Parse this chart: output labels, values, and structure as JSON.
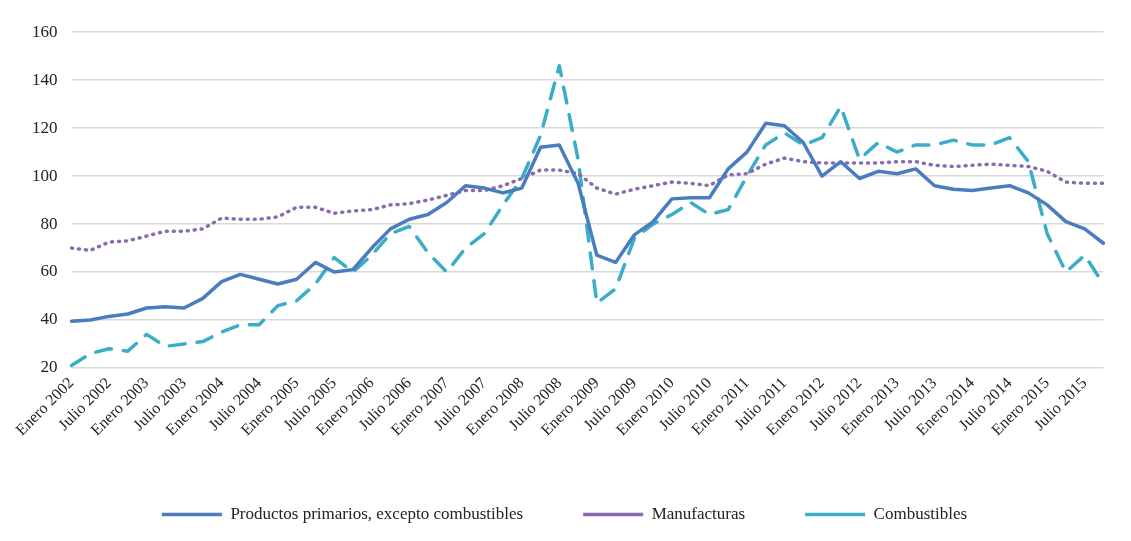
{
  "chart_data": {
    "type": "line",
    "categories": [
      "Enero 2002",
      null,
      "Julio 2002",
      null,
      "Enero 2003",
      null,
      "Julio 2003",
      null,
      "Enero 2004",
      null,
      "Julio 2004",
      null,
      "Enero 2005",
      null,
      "Julio 2005",
      null,
      "Enero 2006",
      null,
      "Julio 2006",
      null,
      "Enero 2007",
      null,
      "Julio 2007",
      null,
      "Enero 2008",
      null,
      "Julio 2008",
      null,
      "Enero 2009",
      null,
      "Julio 2009",
      null,
      "Enero 2010",
      null,
      "Julio 2010",
      null,
      "Enero 2011",
      null,
      "Julio 2011",
      null,
      "Enero 2012",
      null,
      "Julio 2012",
      null,
      "Enero 2013",
      null,
      "Julio 2013",
      null,
      "Enero 2014",
      null,
      "Julio 2014",
      null,
      "Enero 2015",
      null,
      "Julio 2015",
      null
    ],
    "series": [
      {
        "name": "Productos primarios, excepto combustibles",
        "color": "#4a7cc0",
        "line_style": "solid",
        "values": [
          39.5,
          40,
          41.5,
          42.5,
          45,
          45.5,
          45,
          49,
          56,
          59,
          57,
          55,
          57,
          64,
          60,
          61,
          70,
          78,
          82,
          84,
          89,
          96,
          95,
          93,
          95,
          112,
          113,
          97,
          67,
          64,
          75.5,
          81,
          90.5,
          91,
          91,
          103,
          110,
          122,
          121,
          114,
          100,
          106,
          99,
          102,
          101,
          103,
          96,
          94.5,
          94,
          95,
          96,
          93,
          88,
          81,
          78,
          72
        ]
      },
      {
        "name": "Manufacturas",
        "color": "#8a6bb0",
        "line_style": "dotted",
        "values": [
          70,
          69,
          72.5,
          73,
          75,
          77,
          77,
          78,
          82.5,
          82,
          82,
          83,
          87,
          87,
          84.5,
          85.5,
          86,
          88,
          88.5,
          90,
          92,
          94,
          94,
          96,
          99,
          102.5,
          102.5,
          101,
          95,
          92.5,
          94.5,
          96,
          97.5,
          97,
          96,
          100.5,
          101,
          105,
          107.5,
          106,
          105.5,
          105.5,
          105.5,
          105.5,
          106,
          106,
          104.5,
          104,
          104.5,
          105,
          104.5,
          104,
          102,
          97.5,
          97,
          97
        ]
      },
      {
        "name": "Combustibles",
        "color": "#3aaec8",
        "line_style": "dashed",
        "values": [
          21,
          26,
          28,
          27,
          34,
          29,
          30,
          31,
          35,
          38,
          38,
          46,
          48,
          55,
          66,
          60,
          67,
          76,
          79,
          68,
          60,
          70,
          76,
          88,
          99,
          117,
          146,
          107,
          47,
          53,
          74,
          80,
          84,
          89,
          84,
          86,
          100,
          113,
          118,
          113,
          116,
          129,
          107,
          114,
          110,
          113,
          113,
          115,
          113,
          113,
          116,
          106,
          76,
          60,
          67,
          55
        ]
      }
    ],
    "ylim": [
      20,
      160
    ],
    "yticks": [
      20,
      40,
      60,
      80,
      100,
      120,
      140,
      160
    ],
    "grid": "y",
    "legend": "bottom",
    "marker": "none"
  }
}
